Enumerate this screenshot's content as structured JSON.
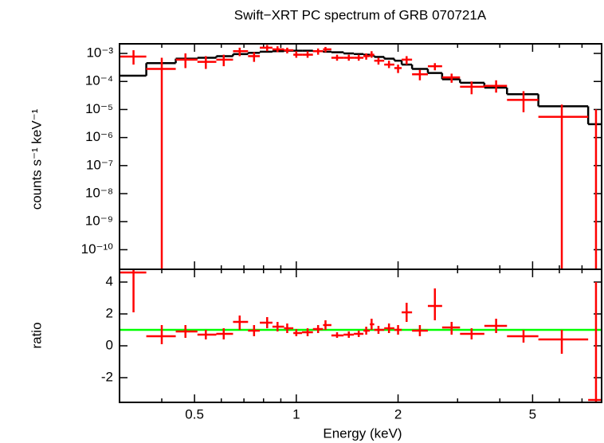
{
  "chart_data": [
    {
      "type": "errorbar",
      "title": "Swift−XRT PC spectrum of GRB 070721A",
      "ylabel": "counts s⁻¹ keV⁻¹",
      "xlog": true,
      "ylog": true,
      "xlim": [
        0.3,
        8.0
      ],
      "ylim": [
        2e-11,
        0.0022
      ],
      "xticks": [
        0.5,
        1,
        2,
        5
      ],
      "xminor_ticks": [
        0.3,
        0.4,
        0.6,
        0.7,
        0.8,
        0.9,
        3,
        4,
        6,
        7,
        8
      ],
      "yticks": [
        {
          "value": 1e-10,
          "label": "10⁻¹⁰"
        },
        {
          "value": 1e-09,
          "label": "10⁻⁹"
        },
        {
          "value": 1e-08,
          "label": "10⁻⁸"
        },
        {
          "value": 1e-07,
          "label": "10⁻⁷"
        },
        {
          "value": 1e-06,
          "label": "10⁻⁶"
        },
        {
          "value": 1e-05,
          "label": "10⁻⁵"
        },
        {
          "value": 0.0001,
          "label": "10⁻⁴"
        },
        {
          "value": 0.001,
          "label": "10⁻³"
        }
      ],
      "x": [
        0.33,
        0.4,
        0.47,
        0.54,
        0.61,
        0.68,
        0.75,
        0.82,
        0.88,
        0.94,
        1.0,
        1.08,
        1.16,
        1.22,
        1.32,
        1.43,
        1.53,
        1.61,
        1.67,
        1.75,
        1.88,
        2.0,
        2.12,
        2.32,
        2.57,
        2.88,
        3.3,
        3.9,
        4.7,
        6.1,
        7.7
      ],
      "x_low": [
        0.3,
        0.36,
        0.44,
        0.51,
        0.58,
        0.65,
        0.72,
        0.78,
        0.85,
        0.92,
        0.98,
        1.04,
        1.12,
        1.2,
        1.27,
        1.38,
        1.48,
        1.58,
        1.65,
        1.7,
        1.82,
        1.95,
        2.05,
        2.2,
        2.45,
        2.7,
        3.05,
        3.6,
        4.2,
        5.2,
        7.3
      ],
      "x_high": [
        0.36,
        0.44,
        0.51,
        0.58,
        0.65,
        0.72,
        0.78,
        0.85,
        0.92,
        0.98,
        1.04,
        1.12,
        1.2,
        1.27,
        1.38,
        1.48,
        1.58,
        1.65,
        1.7,
        1.82,
        1.95,
        2.05,
        2.2,
        2.45,
        2.7,
        3.05,
        3.6,
        4.2,
        5.2,
        7.3,
        8.0
      ],
      "data": {
        "color": "#ff0000",
        "values": [
          0.00077,
          0.00028,
          0.0006,
          0.0005,
          0.0006,
          0.0012,
          0.0008,
          0.0016,
          0.0014,
          0.0013,
          0.0009,
          0.0009,
          0.0012,
          0.0014,
          0.0007,
          0.0007,
          0.0007,
          0.0008,
          0.0009,
          0.00055,
          0.0004,
          0.0003,
          0.0006,
          0.00018,
          0.00035,
          0.00014,
          6.5e-05,
          7e-05,
          2.2e-05,
          5.5e-06,
          null
        ],
        "y_low": [
          0.0004,
          2e-11,
          0.0003,
          0.00028,
          0.00035,
          0.0008,
          0.0005,
          0.0012,
          0.0011,
          0.001,
          0.0007,
          0.0007,
          0.0009,
          0.0011,
          0.00055,
          0.00055,
          0.00055,
          0.0006,
          0.0007,
          0.0004,
          0.0003,
          0.0002,
          0.0004,
          0.00011,
          0.00025,
          9e-05,
          3.5e-05,
          4e-05,
          8e-06,
          2e-11,
          2e-11
        ],
        "y_high": [
          0.0013,
          0.0007,
          0.001,
          0.0008,
          0.0009,
          0.0016,
          0.0011,
          0.002,
          0.0018,
          0.0016,
          0.0012,
          0.0012,
          0.0015,
          0.0017,
          0.0009,
          0.0009,
          0.0009,
          0.001,
          0.0012,
          0.0007,
          0.00055,
          0.0004,
          0.0008,
          0.00026,
          0.00045,
          0.00019,
          0.0001,
          0.00011,
          4.5e-05,
          1.5e-05,
          1e-05
        ]
      },
      "model": {
        "color": "#000000",
        "values": [
          0.00016,
          0.00045,
          0.00065,
          0.0007,
          0.0008,
          0.00095,
          0.00105,
          0.00115,
          0.0012,
          0.00125,
          0.00125,
          0.00125,
          0.0012,
          0.00115,
          0.0011,
          0.001,
          0.00095,
          0.0009,
          0.00085,
          0.00075,
          0.00065,
          0.00055,
          0.0004,
          0.00028,
          0.0002,
          0.00012,
          9e-05,
          6e-05,
          3.5e-05,
          1.3e-05,
          3e-06
        ]
      }
    },
    {
      "type": "errorbar",
      "xlabel": "Energy (keV)",
      "ylabel": "ratio",
      "xlog": true,
      "ylog": false,
      "xlim": [
        0.3,
        8.0
      ],
      "ylim": [
        -3.55,
        4.8
      ],
      "xticks": [
        0.5,
        1,
        2,
        5
      ],
      "xminor_ticks": [
        0.3,
        0.4,
        0.6,
        0.7,
        0.8,
        0.9,
        3,
        4,
        6,
        7,
        8
      ],
      "yticks": [
        -2,
        0,
        2,
        4
      ],
      "hline": 1,
      "hline_color": "#00ff00",
      "x": [
        0.33,
        0.4,
        0.47,
        0.54,
        0.61,
        0.68,
        0.75,
        0.82,
        0.88,
        0.94,
        1.0,
        1.08,
        1.16,
        1.22,
        1.32,
        1.43,
        1.53,
        1.61,
        1.67,
        1.75,
        1.88,
        2.0,
        2.12,
        2.32,
        2.57,
        2.88,
        3.3,
        3.9,
        4.7,
        6.1,
        7.7
      ],
      "x_low": [
        0.3,
        0.36,
        0.44,
        0.51,
        0.58,
        0.65,
        0.72,
        0.78,
        0.85,
        0.92,
        0.98,
        1.04,
        1.12,
        1.2,
        1.27,
        1.38,
        1.48,
        1.58,
        1.65,
        1.7,
        1.82,
        1.95,
        2.05,
        2.2,
        2.45,
        2.7,
        3.05,
        3.6,
        4.2,
        5.2,
        7.3
      ],
      "x_high": [
        0.36,
        0.44,
        0.51,
        0.58,
        0.65,
        0.72,
        0.78,
        0.85,
        0.92,
        0.98,
        1.04,
        1.12,
        1.2,
        1.27,
        1.38,
        1.48,
        1.58,
        1.65,
        1.7,
        1.82,
        1.95,
        2.05,
        2.2,
        2.45,
        2.7,
        3.05,
        3.6,
        4.2,
        5.2,
        7.3,
        8.0
      ],
      "data": {
        "color": "#ff0000",
        "values": [
          4.6,
          0.6,
          0.9,
          0.7,
          0.75,
          1.5,
          0.95,
          1.45,
          1.2,
          1.1,
          0.8,
          0.85,
          1.05,
          1.3,
          0.65,
          0.7,
          0.75,
          0.95,
          1.35,
          1.0,
          1.1,
          1.0,
          2.1,
          0.95,
          2.5,
          1.15,
          0.75,
          1.25,
          0.6,
          0.4,
          -3.4
        ],
        "y_low": [
          2.1,
          0.1,
          0.5,
          0.4,
          0.4,
          1.0,
          0.6,
          1.1,
          0.9,
          0.8,
          0.6,
          0.6,
          0.8,
          1.0,
          0.5,
          0.5,
          0.55,
          0.7,
          1.0,
          0.75,
          0.8,
          0.7,
          1.5,
          0.6,
          1.6,
          0.7,
          0.4,
          0.8,
          0.2,
          -0.5,
          -3.55
        ],
        "y_high": [
          4.8,
          1.3,
          1.3,
          1.0,
          1.1,
          1.9,
          1.3,
          1.8,
          1.5,
          1.4,
          1.05,
          1.1,
          1.3,
          1.6,
          0.85,
          0.9,
          0.95,
          1.2,
          1.7,
          1.25,
          1.4,
          1.3,
          2.7,
          1.3,
          3.6,
          1.5,
          1.1,
          1.7,
          1.0,
          1.0,
          4.0
        ]
      }
    }
  ]
}
